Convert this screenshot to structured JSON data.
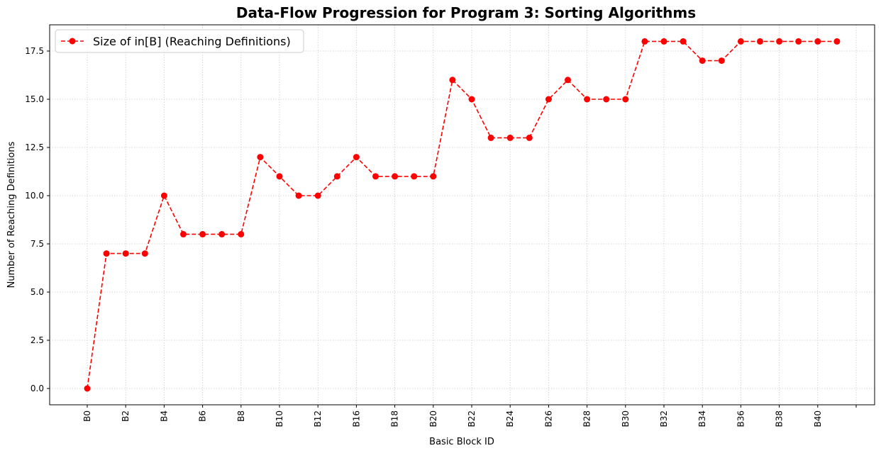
{
  "chart_data": {
    "type": "line",
    "title": "Data-Flow Progression for Program 3: Sorting Algorithms",
    "xlabel": "Basic Block ID",
    "ylabel": "Number of Reaching Definitions",
    "categories": [
      "B0",
      "B1",
      "B2",
      "B3",
      "B4",
      "B5",
      "B6",
      "B7",
      "B8",
      "B9",
      "B10",
      "B11",
      "B12",
      "B14",
      "B16",
      "B17",
      "B18",
      "B19",
      "B20",
      "B21",
      "B22",
      "B23",
      "B24",
      "B25",
      "B26",
      "B27",
      "B28",
      "B29",
      "B30",
      "B31",
      "B32",
      "B33",
      "B34",
      "B35",
      "B36",
      "B37",
      "B38",
      "B39",
      "B40",
      "B41"
    ],
    "tick_labels": [
      "B0",
      "B2",
      "B4",
      "B6",
      "B8",
      "B10",
      "B12",
      "B16",
      "B18",
      "B20",
      "B22",
      "B24",
      "B26",
      "B28",
      "B30",
      "B32",
      "B34",
      "B36",
      "B38",
      "B40",
      ""
    ],
    "series": [
      {
        "name": "Size of in[B] (Reaching Definitions)",
        "color": "#ff0000",
        "linestyle": "dashed",
        "marker": "circle",
        "values": [
          0,
          7,
          7,
          7,
          10,
          8,
          8,
          8,
          8,
          12,
          11,
          10,
          10,
          11,
          12,
          11,
          11,
          11,
          11,
          16,
          15,
          13,
          13,
          13,
          15,
          16,
          15,
          15,
          15,
          18,
          18,
          18,
          17,
          17,
          18,
          18,
          18,
          18,
          18,
          18
        ]
      }
    ],
    "ylim": [
      -0.9,
      18.9
    ],
    "yticks": [
      "0.0",
      "2.5",
      "5.0",
      "7.5",
      "10.0",
      "12.5",
      "15.0",
      "17.5"
    ],
    "grid": true,
    "legend_position": "upper-left"
  }
}
